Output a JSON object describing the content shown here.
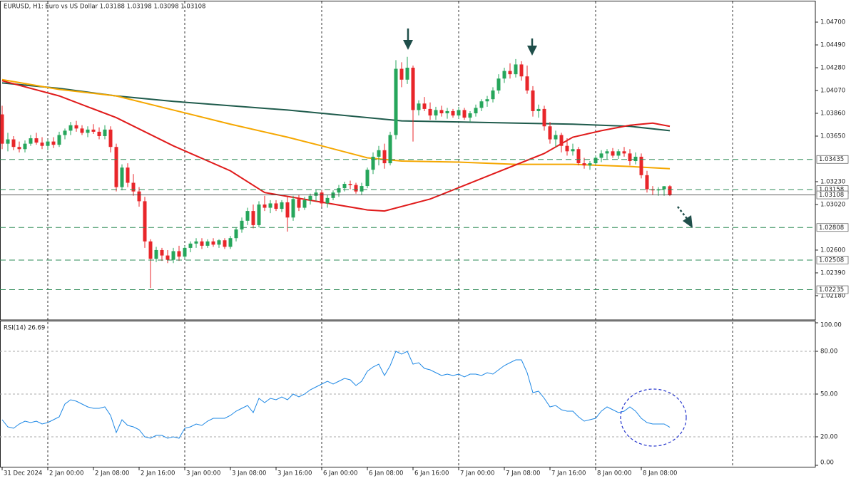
{
  "chart_data": [
    {
      "type": "candlestick",
      "title": "EURUSD, H1: Euro vs US Dollar  1.03188 1.03198 1.03098 1.03108",
      "open": [
        1.0385,
        1.0358,
        1.0362,
        1.0355,
        1.0353,
        1.0358,
        1.0363,
        1.0359,
        1.0356,
        1.036,
        1.0357,
        1.0366,
        1.037,
        1.0375,
        1.0372,
        1.0368,
        1.0371,
        1.0369,
        1.0365,
        1.0371,
        1.0355,
        1.0318,
        1.0336,
        1.0322,
        1.0314,
        1.0305,
        1.0268,
        1.0252,
        1.026,
        1.0255,
        1.0251,
        1.0259,
        1.0254,
        1.0262,
        1.0266,
        1.0268,
        1.0264,
        1.0268,
        1.0265,
        1.0269,
        1.0263,
        1.0271,
        1.0279,
        1.0287,
        1.0296,
        1.0283,
        1.0302,
        1.0299,
        1.0303,
        1.0298,
        1.0304,
        1.029,
        1.0307,
        1.0299,
        1.0306,
        1.031,
        1.0313,
        1.0303,
        1.0308,
        1.0313,
        1.0317,
        1.0321,
        1.032,
        1.0314,
        1.0319,
        1.0334,
        1.0346,
        1.0352,
        1.034,
        1.0366,
        1.0427,
        1.0417,
        1.0428,
        1.0389,
        1.0395,
        1.039,
        1.0384,
        1.0389,
        1.0386,
        1.0388,
        1.0384,
        1.0389,
        1.0382,
        1.0386,
        1.0391,
        1.0397,
        1.0399,
        1.0407,
        1.0418,
        1.0425,
        1.0422,
        1.0431,
        1.042,
        1.0407,
        1.0388,
        1.039,
        1.0374,
        1.0362,
        1.0366,
        1.0356,
        1.0351,
        1.0353,
        1.034,
        1.0338,
        1.034,
        1.0345,
        1.0349,
        1.0351,
        1.0347,
        1.0351,
        1.0349,
        1.0342,
        1.0346,
        1.0329,
        1.0316,
        1.0315,
        1.0316,
        1.03188
      ],
      "high": [
        1.0393,
        1.0368,
        1.0365,
        1.036,
        1.0361,
        1.0366,
        1.0368,
        1.0364,
        1.0362,
        1.0364,
        1.0369,
        1.0372,
        1.0378,
        1.0379,
        1.0375,
        1.0374,
        1.0376,
        1.0373,
        1.0375,
        1.0374,
        1.0358,
        1.0339,
        1.034,
        1.033,
        1.0318,
        1.0309,
        1.027,
        1.0263,
        1.0262,
        1.026,
        1.0262,
        1.0264,
        1.0264,
        1.0268,
        1.0271,
        1.0271,
        1.027,
        1.0271,
        1.027,
        1.0271,
        1.0273,
        1.0281,
        1.029,
        1.0299,
        1.0302,
        1.0305,
        1.031,
        1.0306,
        1.0306,
        1.0306,
        1.0309,
        1.031,
        1.0311,
        1.0309,
        1.0312,
        1.0316,
        1.0315,
        1.0311,
        1.0315,
        1.032,
        1.0323,
        1.0324,
        1.0322,
        1.0322,
        1.0336,
        1.035,
        1.0356,
        1.0358,
        1.0369,
        1.0435,
        1.0433,
        1.0438,
        1.043,
        1.0398,
        1.0401,
        1.0396,
        1.0392,
        1.0393,
        1.0391,
        1.039,
        1.0392,
        1.0391,
        1.0388,
        1.0394,
        1.0399,
        1.0402,
        1.041,
        1.0422,
        1.0428,
        1.0432,
        1.0436,
        1.0434,
        1.043,
        1.0411,
        1.0394,
        1.0393,
        1.0378,
        1.037,
        1.0368,
        1.0363,
        1.0358,
        1.0355,
        1.0345,
        1.0342,
        1.0347,
        1.0352,
        1.0353,
        1.0354,
        1.0353,
        1.0355,
        1.0353,
        1.035,
        1.0349,
        1.0333,
        1.0319,
        1.0318,
        1.0319,
        1.03198
      ],
      "low": [
        1.0353,
        1.0351,
        1.0352,
        1.035,
        1.035,
        1.0356,
        1.0357,
        1.0353,
        1.0352,
        1.0354,
        1.0355,
        1.0362,
        1.0366,
        1.0369,
        1.0366,
        1.0364,
        1.0367,
        1.0362,
        1.0362,
        1.035,
        1.0314,
        1.0315,
        1.0318,
        1.031,
        1.03,
        1.0262,
        1.0225,
        1.0249,
        1.025,
        1.0248,
        1.0248,
        1.025,
        1.0252,
        1.0258,
        1.0262,
        1.0261,
        1.0262,
        1.0263,
        1.0262,
        1.0261,
        1.0261,
        1.0268,
        1.0276,
        1.0283,
        1.028,
        1.0281,
        1.0296,
        1.0294,
        1.0296,
        1.0295,
        1.0277,
        1.0287,
        1.0296,
        1.0297,
        1.0302,
        1.0305,
        1.03,
        1.0299,
        1.0306,
        1.0309,
        1.0314,
        1.0316,
        1.0312,
        1.0311,
        1.0317,
        1.033,
        1.0338,
        1.0335,
        1.0338,
        1.0362,
        1.041,
        1.0413,
        1.036,
        1.0384,
        1.0388,
        1.038,
        1.038,
        1.0383,
        1.0381,
        1.0382,
        1.0381,
        1.038,
        1.0378,
        1.0383,
        1.0388,
        1.0392,
        1.0396,
        1.0404,
        1.0414,
        1.0418,
        1.0419,
        1.0416,
        1.0404,
        1.0383,
        1.0382,
        1.037,
        1.0358,
        1.0355,
        1.035,
        1.0347,
        1.0347,
        1.0338,
        1.0335,
        1.0334,
        1.0338,
        1.0341,
        1.0344,
        1.0345,
        1.0344,
        1.0346,
        1.0338,
        1.0339,
        1.0326,
        1.0313,
        1.0311,
        1.031,
        1.031,
        1.03098
      ],
      "close": [
        1.0358,
        1.0362,
        1.0355,
        1.0353,
        1.0358,
        1.0363,
        1.0359,
        1.0356,
        1.036,
        1.0357,
        1.0366,
        1.037,
        1.0375,
        1.0372,
        1.0368,
        1.0371,
        1.0369,
        1.0365,
        1.0371,
        1.0355,
        1.0318,
        1.0336,
        1.0322,
        1.0314,
        1.0305,
        1.0268,
        1.0252,
        1.026,
        1.0255,
        1.0251,
        1.0259,
        1.0254,
        1.0262,
        1.0266,
        1.0268,
        1.0264,
        1.0268,
        1.0265,
        1.0269,
        1.0263,
        1.0271,
        1.0279,
        1.0287,
        1.0296,
        1.0283,
        1.0302,
        1.0299,
        1.0303,
        1.0298,
        1.0304,
        1.029,
        1.0307,
        1.0299,
        1.0306,
        1.031,
        1.0313,
        1.0303,
        1.0308,
        1.0313,
        1.0317,
        1.0321,
        1.032,
        1.0314,
        1.0319,
        1.0334,
        1.0346,
        1.0352,
        1.034,
        1.0366,
        1.0427,
        1.0417,
        1.0428,
        1.0389,
        1.0395,
        1.039,
        1.0384,
        1.0389,
        1.0386,
        1.0388,
        1.0384,
        1.0389,
        1.0382,
        1.0386,
        1.0391,
        1.0397,
        1.0399,
        1.0407,
        1.0418,
        1.0425,
        1.0422,
        1.0431,
        1.042,
        1.0407,
        1.0388,
        1.039,
        1.0374,
        1.0362,
        1.0366,
        1.0356,
        1.0351,
        1.0353,
        1.034,
        1.0338,
        1.034,
        1.0345,
        1.0349,
        1.0351,
        1.0347,
        1.0351,
        1.0349,
        1.0342,
        1.0346,
        1.0329,
        1.0316,
        1.0315,
        1.0316,
        1.03188,
        1.03108
      ],
      "up_color": "#26a65b",
      "down_color": "#e8262a",
      "lines": [
        {
          "color": "#1f5b4c",
          "x": [
            0,
            10,
            20,
            30,
            40,
            50,
            60,
            70,
            80,
            90,
            100,
            110,
            117
          ],
          "values": [
            1.0414,
            1.0409,
            1.0402,
            1.0397,
            1.0393,
            1.0389,
            1.0384,
            1.0379,
            1.0378,
            1.0377,
            1.0376,
            1.0374,
            1.037
          ]
        },
        {
          "color": "#f5a700",
          "x": [
            0,
            10,
            20,
            30,
            40,
            50,
            56,
            64,
            70,
            80,
            90,
            100,
            110,
            117
          ],
          "values": [
            1.0417,
            1.0408,
            1.0402,
            1.0389,
            1.0376,
            1.0364,
            1.0356,
            1.0345,
            1.0342,
            1.0341,
            1.0339,
            1.0339,
            1.0337,
            1.0335
          ]
        },
        {
          "color": "#e01b1b",
          "x": [
            0,
            10,
            20,
            30,
            40,
            46,
            55,
            64,
            67,
            75,
            85,
            95,
            100,
            105,
            110,
            114,
            117
          ],
          "values": [
            1.0416,
            1.0402,
            1.0382,
            1.0356,
            1.0333,
            1.0313,
            1.0305,
            1.0297,
            1.0296,
            1.0307,
            1.0328,
            1.0349,
            1.0364,
            1.037,
            1.0375,
            1.0377,
            1.0374
          ]
        }
      ],
      "levels": [
        1.03435,
        1.03158,
        1.02808,
        1.02508,
        1.02235
      ],
      "level_color": "#2e8b57",
      "last_price": 1.03108,
      "xlim": [
        -0.375,
        142.5
      ],
      "ylim": [
        1.01917,
        1.04884
      ],
      "yticks": [
        {
          "value": 1.047,
          "label": "1.04700"
        },
        {
          "value": 1.0449,
          "label": "1.04490"
        },
        {
          "value": 1.0428,
          "label": "1.04280"
        },
        {
          "value": 1.0407,
          "label": "1.04070"
        },
        {
          "value": 1.0386,
          "label": "1.03860"
        },
        {
          "value": 1.0365,
          "label": "1.03650"
        },
        {
          "value": 1.0323,
          "label": "1.03230"
        },
        {
          "value": 1.0302,
          "label": "1.03020"
        },
        {
          "value": 1.026,
          "label": "1.02600"
        },
        {
          "value": 1.0239,
          "label": "1.02390"
        },
        {
          "value": 1.0218,
          "label": "1.02180"
        }
      ]
    },
    {
      "type": "line",
      "title": "RSI(14) 26.69",
      "values": [
        32,
        27,
        26,
        29,
        31,
        30,
        31,
        29,
        30,
        32,
        34,
        43,
        46,
        45,
        43,
        41,
        40,
        40,
        41,
        35,
        23,
        32,
        28,
        27,
        25,
        20,
        19,
        21,
        21,
        19,
        20,
        19,
        26,
        27,
        29,
        28,
        31,
        33,
        33,
        33,
        35,
        38,
        40,
        42,
        37,
        47,
        44,
        47,
        46,
        48,
        46,
        50,
        48,
        50,
        53,
        55,
        57,
        59,
        57,
        59,
        61,
        60,
        56,
        59,
        66,
        69,
        71,
        63,
        70,
        80,
        78,
        80,
        71,
        72,
        68,
        67,
        65,
        63,
        64,
        63,
        64,
        62,
        64,
        64,
        63,
        65,
        64,
        67,
        70,
        72,
        74,
        74,
        65,
        51,
        52,
        47,
        41,
        42,
        39,
        38,
        38,
        34,
        31,
        32,
        33,
        38,
        41,
        39,
        37,
        38,
        41,
        38,
        33,
        30,
        29,
        29,
        29,
        26.69
      ],
      "color": "#1e88e5",
      "xlim": [
        -0.375,
        142.5
      ],
      "ylim": [
        0,
        100
      ],
      "yticks": [
        {
          "value": 100,
          "label": "100.00"
        },
        {
          "value": 80,
          "label": "80.00"
        },
        {
          "value": 50,
          "label": "50.00"
        },
        {
          "value": 20,
          "label": "20.00"
        },
        {
          "value": 0,
          "label": "0.00"
        }
      ],
      "grid": true,
      "xticks": [
        {
          "value": 0,
          "label": "31 Dec 2024"
        },
        {
          "value": 8,
          "label": "2 Jan 00:00"
        },
        {
          "value": 16,
          "label": "2 Jan 08:00"
        },
        {
          "value": 24,
          "label": "2 Jan 16:00"
        },
        {
          "value": 32,
          "label": "3 Jan 00:00"
        },
        {
          "value": 40,
          "label": "3 Jan 08:00"
        },
        {
          "value": 48,
          "label": "3 Jan 16:00"
        },
        {
          "value": 56,
          "label": "6 Jan 00:00"
        },
        {
          "value": 64,
          "label": "6 Jan 08:00"
        },
        {
          "value": 72,
          "label": "6 Jan 16:00"
        },
        {
          "value": 80,
          "label": "7 Jan 00:00"
        },
        {
          "value": 88,
          "label": "7 Jan 08:00"
        },
        {
          "value": 96,
          "label": "7 Jan 16:00"
        },
        {
          "value": 104,
          "label": "8 Jan 00:00"
        },
        {
          "value": 112,
          "label": "8 Jan 08:00"
        }
      ]
    }
  ]
}
